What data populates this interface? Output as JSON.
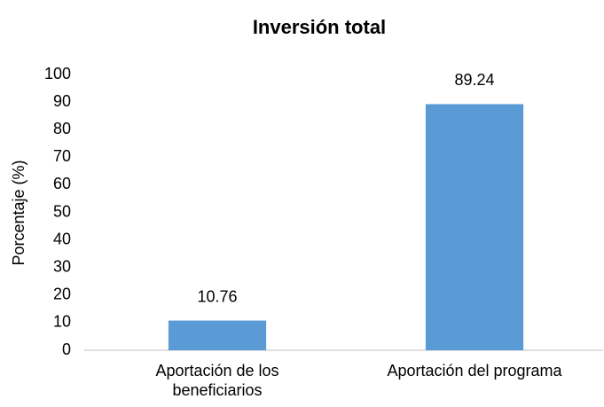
{
  "chart_data": {
    "type": "bar",
    "title": "Inversión total",
    "y_label": "Porcentaje (%)",
    "categories": [
      "Aportación de los beneficiarios",
      "Aportación del programa"
    ],
    "values": [
      10.76,
      89.24
    ],
    "color": "#5b9bd5",
    "ylim": [
      0,
      100
    ],
    "yticks": [
      0,
      10,
      20,
      30,
      40,
      50,
      60,
      70,
      80,
      90,
      100
    ],
    "grid": false
  }
}
